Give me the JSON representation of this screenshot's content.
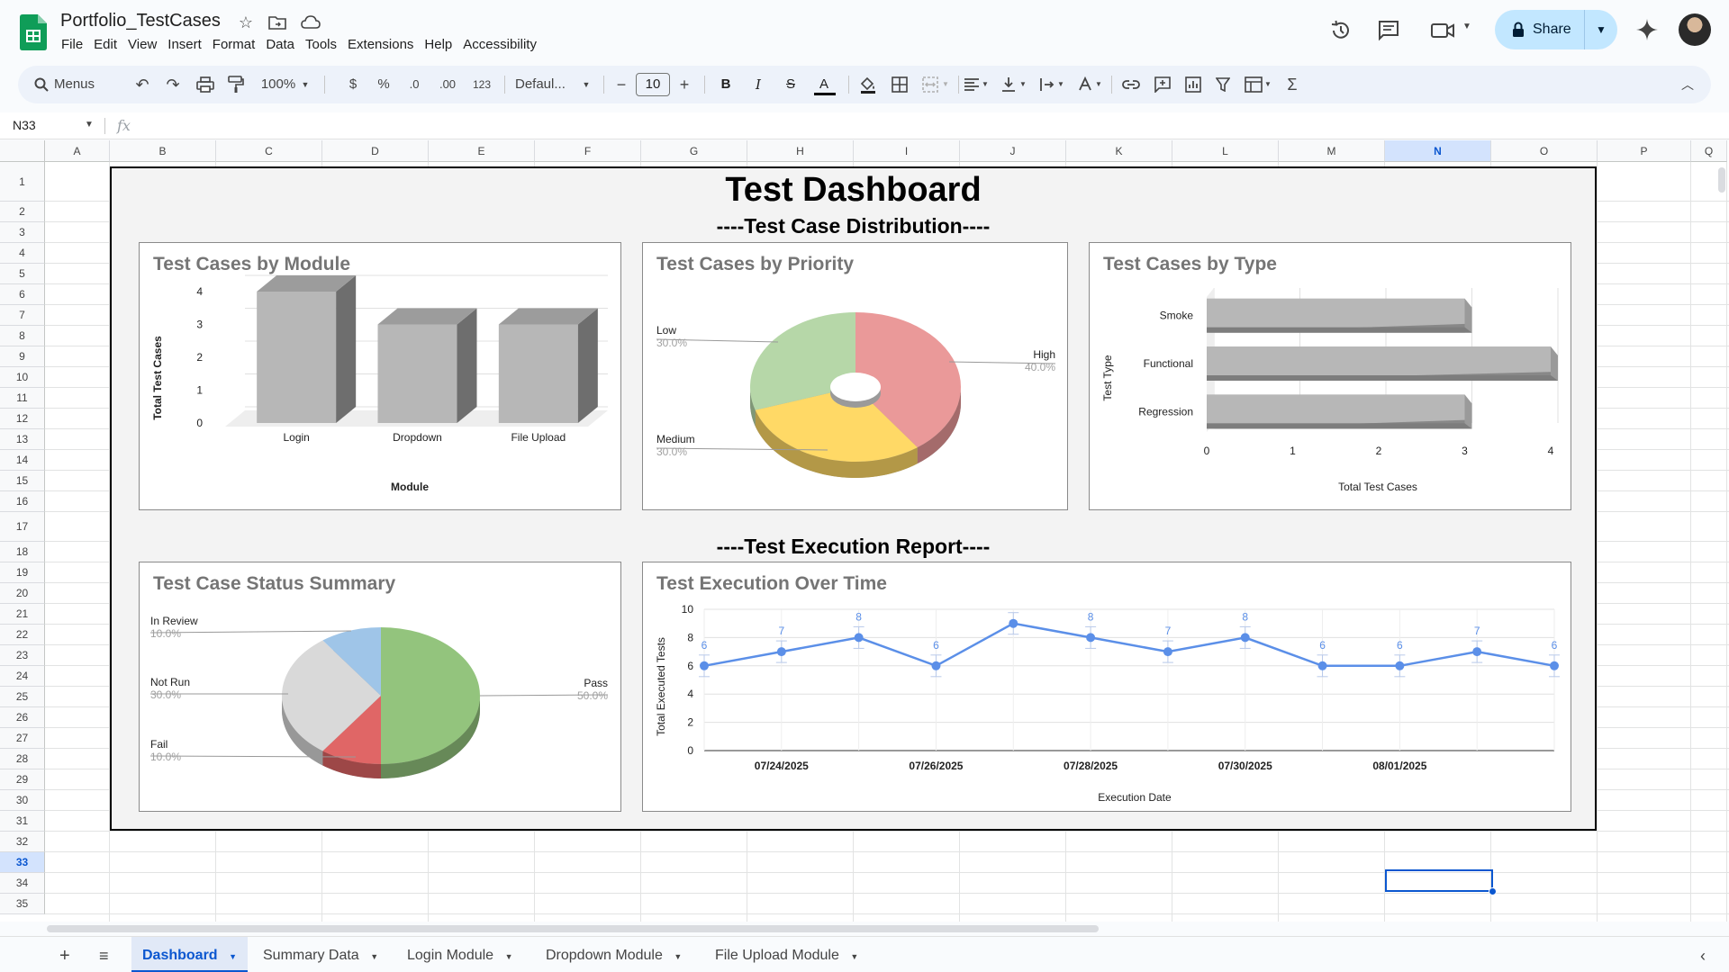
{
  "app": {
    "doc_title": "Portfolio_TestCases",
    "menu": [
      "File",
      "Edit",
      "View",
      "Insert",
      "Format",
      "Data",
      "Tools",
      "Extensions",
      "Help",
      "Accessibility"
    ],
    "share_label": "Share"
  },
  "toolbar": {
    "menus_label": "Menus",
    "zoom": "100%",
    "currency": "$",
    "percent": "%",
    "dec_decrease": ".0",
    "dec_increase": ".00",
    "number_format": "123",
    "font": "Defaul...",
    "font_size": "10",
    "bold": "B",
    "italic": "I",
    "strike": "S",
    "text_color": "A",
    "sum": "Σ"
  },
  "formula_bar": {
    "name_box": "N33",
    "fx": "fx",
    "value": ""
  },
  "grid": {
    "columns": [
      "A",
      "B",
      "C",
      "D",
      "E",
      "F",
      "G",
      "H",
      "I",
      "J",
      "K",
      "L",
      "M",
      "N",
      "O",
      "P",
      "Q"
    ],
    "rows": [
      "1",
      "2",
      "3",
      "4",
      "5",
      "6",
      "7",
      "8",
      "9",
      "10",
      "11",
      "12",
      "13",
      "14",
      "15",
      "16",
      "17",
      "18",
      "19",
      "20",
      "21",
      "22",
      "23",
      "24",
      "25",
      "26",
      "27",
      "28",
      "29",
      "30",
      "31",
      "32",
      "33",
      "34",
      "35"
    ],
    "selected_column": "N",
    "selected_row": "33"
  },
  "dashboard": {
    "title": "Test Dashboard",
    "section_distribution": "----Test Case Distribution----",
    "section_execution": "----Test Execution Report----"
  },
  "chart_data": [
    {
      "type": "bar",
      "title": "Test Cases by Module",
      "categories": [
        "Login",
        "Dropdown",
        "File Upload"
      ],
      "values": [
        4,
        3,
        3
      ],
      "xlabel": "Module",
      "ylabel": "Total Test Cases",
      "ylim": [
        0,
        4
      ],
      "yticks": [
        "0",
        "1",
        "2",
        "3",
        "4"
      ],
      "color": "#b7b7b7"
    },
    {
      "type": "pie",
      "title": "Test Cases by Priority",
      "slices": [
        {
          "label": "High",
          "value": 40,
          "pct": "40.0%",
          "color": "#ea9999"
        },
        {
          "label": "Medium",
          "value": 30,
          "pct": "30.0%",
          "color": "#ffd966"
        },
        {
          "label": "Low",
          "value": 30,
          "pct": "30.0%",
          "color": "#b6d7a8"
        }
      ],
      "donut": true
    },
    {
      "type": "bar",
      "orientation": "horizontal",
      "title": "Test Cases by Type",
      "categories": [
        "Smoke",
        "Functional",
        "Regression"
      ],
      "values": [
        3,
        4,
        3
      ],
      "xlabel": "Total Test Cases",
      "ylabel": "Test Type",
      "xlim": [
        0,
        4
      ],
      "xticks": [
        "0",
        "1",
        "2",
        "3",
        "4"
      ],
      "color": "#b7b7b7"
    },
    {
      "type": "pie",
      "title": "Test Case Status Summary",
      "slices": [
        {
          "label": "Pass",
          "value": 50,
          "pct": "50.0%",
          "color": "#93c47d"
        },
        {
          "label": "Fail",
          "value": 10,
          "pct": "10.0%",
          "color": "#e06666"
        },
        {
          "label": "Not Run",
          "value": 30,
          "pct": "30.0%",
          "color": "#d9d9d9"
        },
        {
          "label": "In Review",
          "value": 10,
          "pct": "10.0%",
          "color": "#9fc5e8"
        }
      ]
    },
    {
      "type": "line",
      "title": "Test Execution Over Time",
      "x": [
        "07/23/2025",
        "07/24/2025",
        "07/25/2025",
        "07/26/2025",
        "07/27/2025",
        "07/28/2025",
        "07/29/2025",
        "07/30/2025",
        "07/31/2025",
        "08/01/2025",
        "08/02/2025",
        "08/03/2025"
      ],
      "values": [
        6,
        7,
        8,
        6,
        9,
        8,
        7,
        8,
        6,
        6,
        7,
        6
      ],
      "point_labels": [
        "6",
        "7",
        "8",
        "6",
        "",
        "8",
        "7",
        "8",
        "6",
        "6",
        "7",
        "6"
      ],
      "xtick_labels": [
        "07/24/2025",
        "07/26/2025",
        "07/28/2025",
        "07/30/2025",
        "08/01/2025"
      ],
      "yticks": [
        "0",
        "2",
        "4",
        "6",
        "8",
        "10"
      ],
      "ylim": [
        0,
        10
      ],
      "xlabel": "Execution Date",
      "ylabel": "Total Executed Tests",
      "color": "#5b8fe8"
    }
  ],
  "sheet_tabs": {
    "add": "+",
    "list": "≡",
    "tabs": [
      "Dashboard",
      "Summary Data",
      "Login Module",
      "Dropdown Module",
      "File Upload Module"
    ],
    "active": "Dashboard"
  }
}
